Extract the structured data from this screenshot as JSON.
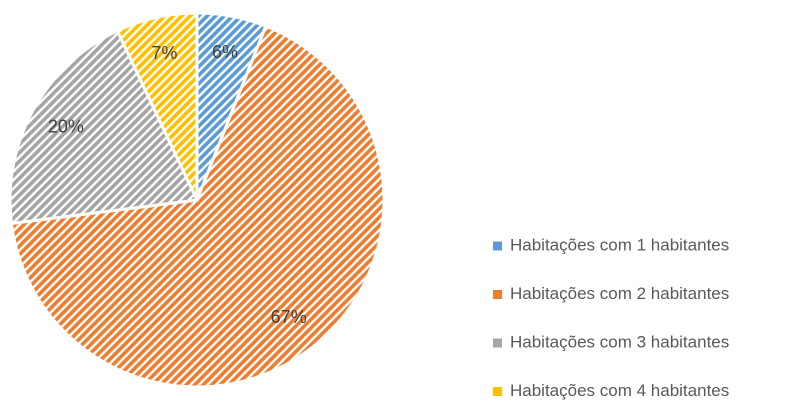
{
  "chart_data": {
    "type": "pie",
    "categories": [
      "Habitações com 1 habitantes",
      "Habitações com 2 habitantes",
      "Habitações com 3 habitantes",
      "Habitações com 4 habitantes"
    ],
    "values": [
      6,
      67,
      20,
      7
    ],
    "value_labels": [
      "6%",
      "67%",
      "20%",
      "7%"
    ],
    "colors": [
      "#5b9bd5",
      "#ed7d31",
      "#a5a5a5",
      "#ffc000"
    ],
    "legend": "right"
  }
}
